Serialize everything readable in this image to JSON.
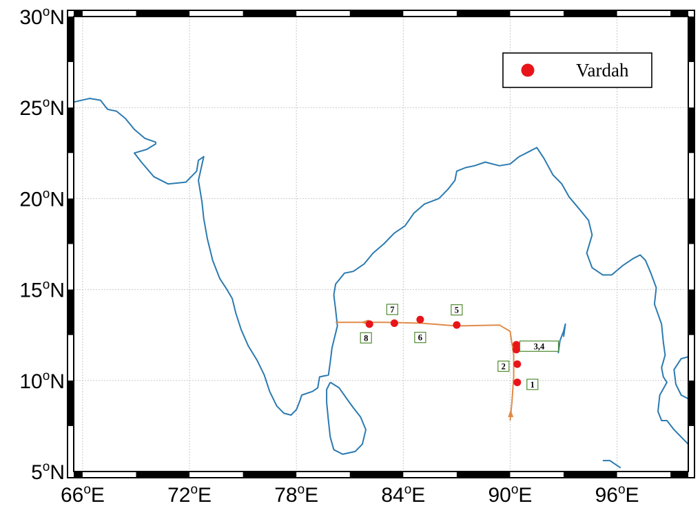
{
  "map": {
    "projection": "equirectangular",
    "lon_range": [
      65.5,
      100
    ],
    "lat_range": [
      5,
      30
    ],
    "grid": true,
    "lat_ticks": [
      {
        "value": 30,
        "num": "30",
        "hemi": "N"
      },
      {
        "value": 25,
        "num": "25",
        "hemi": "N"
      },
      {
        "value": 20,
        "num": "20",
        "hemi": "N"
      },
      {
        "value": 15,
        "num": "15",
        "hemi": "N"
      },
      {
        "value": 10,
        "num": "10",
        "hemi": "N"
      },
      {
        "value": 5,
        "num": "5",
        "hemi": "N"
      }
    ],
    "lon_ticks": [
      {
        "value": 66,
        "num": "66",
        "hemi": "E"
      },
      {
        "value": 72,
        "num": "72",
        "hemi": "E"
      },
      {
        "value": 78,
        "num": "78",
        "hemi": "E"
      },
      {
        "value": 84,
        "num": "84",
        "hemi": "E"
      },
      {
        "value": 90,
        "num": "90",
        "hemi": "E"
      },
      {
        "value": 96,
        "num": "96",
        "hemi": "E"
      }
    ],
    "degree_symbol": "o",
    "coastline_color": "#2a7ab0",
    "track_color": "#e08a48",
    "marker_color": "#e8141a",
    "label_box_color": "#4e8a30"
  },
  "legend": {
    "placement": "top-right",
    "label": "Vardah"
  },
  "storm": {
    "name": "Vardah",
    "track": [
      [
        90.0,
        7.8
      ],
      [
        90.1,
        8.8
      ],
      [
        90.2,
        10.2
      ],
      [
        90.2,
        11.4
      ],
      [
        90.0,
        12.7
      ],
      [
        89.4,
        13.05
      ],
      [
        87.0,
        13.0
      ],
      [
        85.0,
        13.15
      ],
      [
        83.0,
        13.2
      ],
      [
        80.2,
        13.2
      ]
    ],
    "fixes": [
      {
        "label": "1",
        "lon": 90.4,
        "lat": 9.9
      },
      {
        "label": "2",
        "lon": 90.4,
        "lat": 10.9
      },
      {
        "label": "3,4",
        "lon": 90.35,
        "lat": 11.85
      },
      {
        "label": "5",
        "lon": 87.0,
        "lat": 13.05
      },
      {
        "label": "6",
        "lon": 84.95,
        "lat": 13.35
      },
      {
        "label": "7",
        "lon": 83.5,
        "lat": 13.15
      },
      {
        "label": "8",
        "lon": 82.1,
        "lat": 13.1
      }
    ]
  },
  "coastlines": {
    "india_west": [
      [
        65.5,
        25.3
      ],
      [
        66.4,
        25.5
      ],
      [
        67.0,
        25.4
      ],
      [
        67.4,
        24.9
      ],
      [
        67.9,
        24.8
      ],
      [
        68.4,
        24.4
      ],
      [
        68.9,
        23.8
      ],
      [
        69.5,
        23.3
      ],
      [
        70.1,
        23.1
      ],
      [
        70.1,
        23.0
      ],
      [
        69.6,
        22.7
      ],
      [
        68.9,
        22.5
      ],
      [
        69.3,
        22.0
      ],
      [
        70.0,
        21.2
      ],
      [
        70.8,
        20.8
      ],
      [
        71.8,
        20.9
      ],
      [
        72.4,
        21.5
      ],
      [
        72.5,
        22.1
      ],
      [
        72.8,
        22.3
      ],
      [
        72.5,
        21.0
      ],
      [
        72.7,
        19.8
      ],
      [
        72.8,
        18.9
      ],
      [
        73.0,
        17.8
      ],
      [
        73.3,
        16.6
      ],
      [
        73.7,
        15.6
      ],
      [
        74.1,
        15.0
      ],
      [
        74.4,
        14.5
      ],
      [
        74.6,
        13.7
      ],
      [
        74.9,
        12.8
      ],
      [
        75.3,
        11.9
      ],
      [
        75.8,
        11.1
      ],
      [
        76.2,
        10.3
      ],
      [
        76.5,
        9.4
      ],
      [
        76.9,
        8.6
      ],
      [
        77.3,
        8.2
      ],
      [
        77.7,
        8.1
      ],
      [
        78.0,
        8.4
      ],
      [
        78.2,
        8.9
      ],
      [
        78.3,
        9.2
      ],
      [
        78.9,
        9.4
      ],
      [
        79.2,
        9.6
      ],
      [
        79.3,
        10.2
      ],
      [
        79.8,
        10.3
      ],
      [
        79.9,
        11.0
      ],
      [
        80.0,
        11.8
      ],
      [
        80.3,
        13.0
      ],
      [
        80.2,
        13.9
      ],
      [
        80.1,
        14.7
      ],
      [
        80.2,
        15.3
      ],
      [
        80.7,
        15.9
      ],
      [
        81.2,
        16.0
      ],
      [
        81.8,
        16.4
      ],
      [
        82.3,
        17.0
      ],
      [
        82.9,
        17.5
      ],
      [
        83.5,
        18.1
      ],
      [
        84.1,
        18.5
      ],
      [
        84.6,
        19.2
      ],
      [
        85.2,
        19.7
      ],
      [
        86.0,
        20.0
      ],
      [
        86.5,
        20.5
      ],
      [
        86.9,
        21.0
      ],
      [
        87.0,
        21.5
      ],
      [
        87.5,
        21.7
      ],
      [
        88.0,
        21.8
      ],
      [
        88.6,
        22.0
      ],
      [
        89.4,
        21.8
      ],
      [
        90.0,
        21.9
      ],
      [
        90.5,
        22.3
      ],
      [
        91.1,
        22.6
      ],
      [
        91.5,
        22.8
      ],
      [
        91.9,
        22.2
      ],
      [
        92.4,
        21.3
      ],
      [
        92.9,
        20.8
      ],
      [
        93.3,
        20.1
      ],
      [
        93.9,
        19.4
      ],
      [
        94.4,
        18.8
      ],
      [
        94.6,
        18.0
      ],
      [
        94.3,
        17.0
      ],
      [
        94.6,
        16.2
      ],
      [
        95.2,
        15.8
      ],
      [
        95.7,
        15.8
      ],
      [
        96.3,
        16.3
      ],
      [
        96.9,
        16.7
      ],
      [
        97.3,
        16.9
      ],
      [
        97.6,
        16.6
      ],
      [
        97.9,
        15.9
      ],
      [
        98.2,
        15.1
      ],
      [
        98.1,
        14.2
      ],
      [
        98.5,
        13.1
      ],
      [
        98.6,
        12.1
      ],
      [
        98.7,
        11.4
      ],
      [
        98.5,
        10.7
      ],
      [
        98.6,
        10.2
      ],
      [
        98.8,
        9.9
      ],
      [
        98.4,
        9.2
      ],
      [
        98.3,
        8.3
      ],
      [
        98.5,
        7.8
      ],
      [
        98.8,
        7.8
      ],
      [
        99.2,
        7.3
      ],
      [
        99.7,
        6.8
      ],
      [
        100.0,
        6.5
      ]
    ],
    "sri_lanka": [
      [
        79.9,
        9.9
      ],
      [
        79.7,
        9.5
      ],
      [
        79.7,
        8.8
      ],
      [
        79.8,
        7.8
      ],
      [
        79.9,
        6.9
      ],
      [
        80.1,
        6.2
      ],
      [
        80.6,
        5.95
      ],
      [
        81.3,
        6.1
      ],
      [
        81.7,
        6.5
      ],
      [
        81.9,
        7.3
      ],
      [
        81.6,
        8.0
      ],
      [
        81.2,
        8.5
      ],
      [
        80.9,
        8.9
      ],
      [
        80.4,
        9.6
      ],
      [
        79.9,
        9.9
      ]
    ],
    "andaman": [
      [
        92.7,
        11.5
      ],
      [
        92.8,
        12.2
      ],
      [
        93.0,
        12.7
      ],
      [
        93.1,
        13.1
      ],
      [
        93.0,
        12.4
      ]
    ],
    "sumatra": [
      [
        95.2,
        5.6
      ],
      [
        95.6,
        5.6
      ],
      [
        95.9,
        5.4
      ],
      [
        96.2,
        5.2
      ]
    ],
    "malay_east": [
      [
        100.0,
        9.0
      ],
      [
        99.6,
        9.2
      ],
      [
        99.3,
        9.8
      ],
      [
        99.2,
        10.6
      ],
      [
        99.6,
        11.2
      ],
      [
        100.0,
        11.3
      ]
    ]
  }
}
